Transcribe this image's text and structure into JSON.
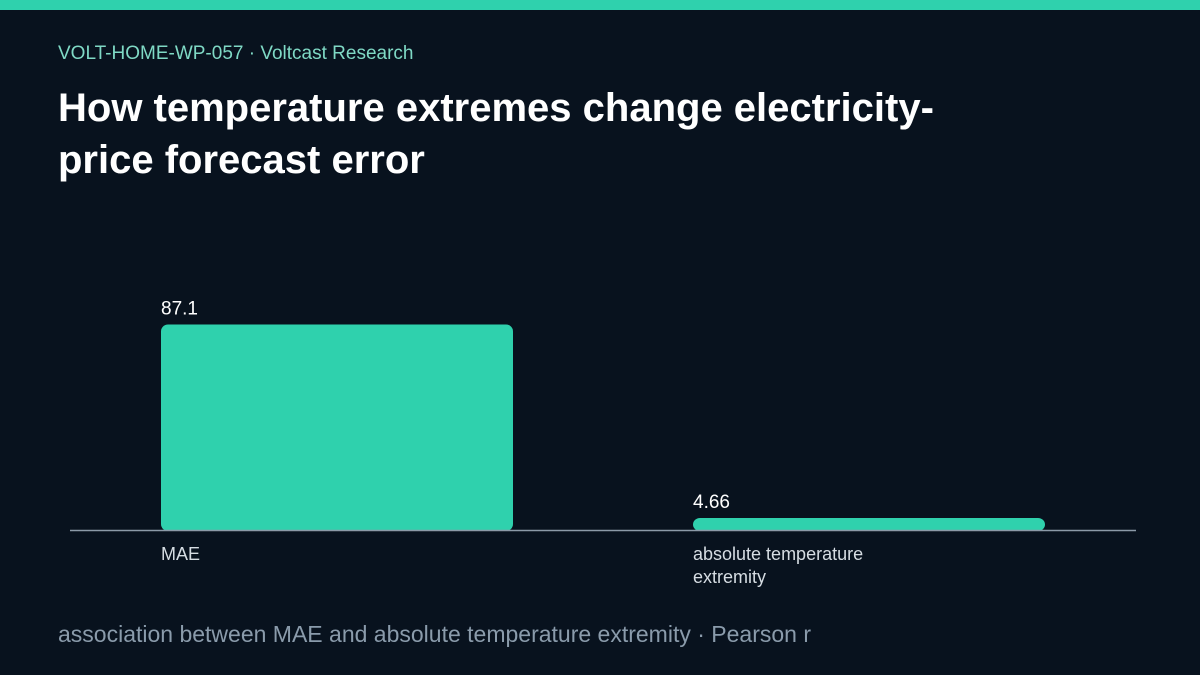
{
  "header": {
    "doc_id": "VOLT-HOME-WP-057",
    "separator": "·",
    "publisher": "Voltcast Research",
    "title": "How temperature extremes change electricity-price forecast error"
  },
  "footer": {
    "caption": "association between MAE and absolute temperature extremity · Pearson r"
  },
  "colors": {
    "background": "#08121e",
    "accent": "#2fd1ad",
    "bar": "#2fd1ad",
    "axis": "#8c9aa8",
    "label": "#d6dde3"
  },
  "chart_data": {
    "type": "bar",
    "categories": [
      "MAE",
      "absolute temperature extremity"
    ],
    "values": [
      87.1,
      4.66
    ],
    "data_labels": [
      "87.1",
      "4.66"
    ],
    "ylim": [
      0,
      100
    ],
    "grid": false,
    "legend": "none"
  }
}
